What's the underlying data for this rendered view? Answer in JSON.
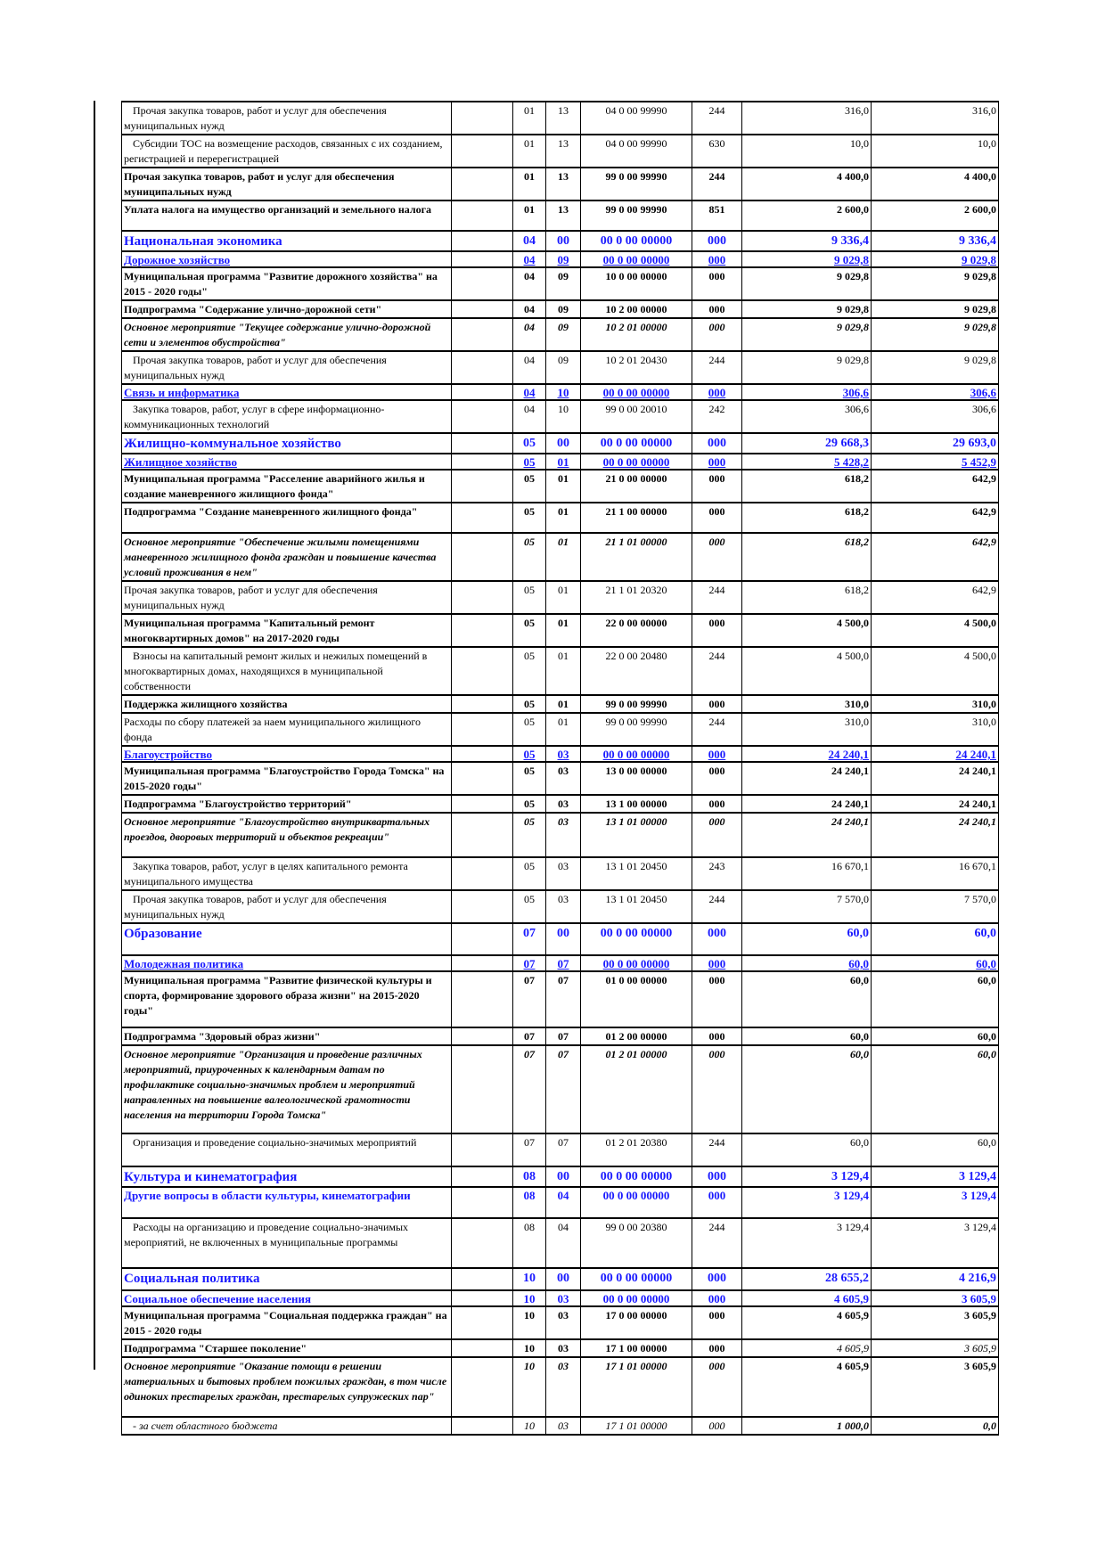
{
  "table": {
    "rows": [
      {
        "style": "plain",
        "indent": true,
        "name": "Прочая закупка товаров, работ и услуг для обеспечения муниципальных нужд",
        "rz": "01",
        "pr": "13",
        "csr": "04 0 00 99990",
        "vr": "244",
        "v1": "316,0",
        "v2": "316,0"
      },
      {
        "style": "plain",
        "indent": true,
        "name": "Субсидии ТОС на возмещение расходов, связанных с их созданием, регистрацией и перерегистрацией",
        "rz": "01",
        "pr": "13",
        "csr": "04 0 00 99990",
        "vr": "630",
        "v1": "10,0",
        "v2": "10,0"
      },
      {
        "style": "bold",
        "name": "Прочая закупка товаров, работ и услуг для обеспечения муниципальных нужд",
        "rz": "01",
        "pr": "13",
        "csr": "99 0 00 99990",
        "vr": "244",
        "v1": "4 400,0",
        "v2": "4 400,0"
      },
      {
        "style": "bold",
        "name": "Уплата налога на имущество организаций и земельного налога",
        "rz": "01",
        "pr": "13",
        "csr": "99 0 00 99990",
        "vr": "851",
        "v1": "2 600,0",
        "v2": "2 600,0"
      },
      {
        "style": "sect",
        "name": "Национальная экономика",
        "rz": "04",
        "pr": "00",
        "csr": "00 0 00 00000",
        "vr": "000",
        "v1": "9 336,4",
        "v2": "9 336,4"
      },
      {
        "style": "sub u",
        "name": "Дорожное хозяйство",
        "rz": "04",
        "pr": "09",
        "csr": "00 0 00 00000",
        "vr": "000",
        "v1": "9 029,8",
        "v2": "9 029,8"
      },
      {
        "style": "bold",
        "name": "Муниципальная программа \"Развитие дорожного хозяйства\" на 2015 - 2020 годы\"",
        "rz": "04",
        "pr": "09",
        "csr": "10 0 00 00000",
        "vr": "000",
        "v1": "9 029,8",
        "v2": "9 029,8"
      },
      {
        "style": "bold",
        "name": "Подпрограмма \"Содержание улично-дорожной сети\"",
        "rz": "04",
        "pr": "09",
        "csr": "10 2 00 00000",
        "vr": "000",
        "v1": "9 029,8",
        "v2": "9 029,8"
      },
      {
        "style": "italic",
        "name": "Основное мероприятие \"Текущее содержание улично-дорожной сети и элементов обустройства\"",
        "rz": "04",
        "pr": "09",
        "csr": "10 2 01 00000",
        "vr": "000",
        "v1": "9 029,8",
        "v2": "9 029,8"
      },
      {
        "style": "plain",
        "indent": true,
        "name": "Прочая закупка товаров, работ и услуг для обеспечения муниципальных нужд",
        "rz": "04",
        "pr": "09",
        "csr": "10 2 01 20430",
        "vr": "244",
        "v1": "9 029,8",
        "v2": "9 029,8"
      },
      {
        "style": "sub u",
        "name": "Связь и информатика",
        "rz": "04",
        "pr": "10",
        "csr": "00 0 00 00000",
        "vr": "000",
        "v1": "306,6",
        "v2": "306,6"
      },
      {
        "style": "plain",
        "indent": true,
        "name": "Закупка товаров, работ, услуг в сфере информационно-коммуникационных технологий",
        "rz": "04",
        "pr": "10",
        "csr": "99 0 00 20010",
        "vr": "242",
        "v1": "306,6",
        "v2": "306,6"
      },
      {
        "style": "sect",
        "name": "Жилищно-коммунальное хозяйство",
        "rz": "05",
        "pr": "00",
        "csr": "00 0 00 00000",
        "vr": "000",
        "v1": "29 668,3",
        "v2": "29 693,0"
      },
      {
        "style": "sub u",
        "name": "Жилищное хозяйство",
        "rz": "05",
        "pr": "01",
        "csr": "00 0 00 00000",
        "vr": "000",
        "v1": "5 428,2",
        "v2": "5 452,9"
      },
      {
        "style": "bold",
        "name": "Муниципальная программа \"Расселение аварийного жилья и создание маневренного жилищного фонда\"",
        "rz": "05",
        "pr": "01",
        "csr": "21 0 00 00000",
        "vr": "000",
        "v1": "618,2",
        "v2": "642,9"
      },
      {
        "style": "bold",
        "name": "Подпрограмма \"Создание маневренного жилищного фонда\"",
        "rz": "05",
        "pr": "01",
        "csr": "21 1 00 00000",
        "vr": "000",
        "v1": "618,2",
        "v2": "642,9"
      },
      {
        "style": "italic",
        "name": "Основное мероприятие \"Обеспечение жилыми помещениями маневренного жилищного фонда граждан и повышение качества условий проживания в нем\"",
        "rz": "05",
        "pr": "01",
        "csr": "21 1 01 00000",
        "vr": "000",
        "v1": "618,2",
        "v2": "642,9"
      },
      {
        "style": "plain",
        "name": "Прочая закупка товаров, работ и услуг для обеспечения муниципальных нужд",
        "rz": "05",
        "pr": "01",
        "csr": "21 1 01 20320",
        "vr": "244",
        "v1": "618,2",
        "v2": "642,9"
      },
      {
        "style": "bold",
        "name": "Муниципальная программа \"Капитальный ремонт многоквартирных домов\" на 2017-2020 годы",
        "rz": "05",
        "pr": "01",
        "csr": "22 0 00 00000",
        "vr": "000",
        "v1": "4 500,0",
        "v2": "4 500,0"
      },
      {
        "style": "plain",
        "indent": true,
        "name": "Взносы на капитальный ремонт жилых и нежилых помещений в многоквартирных домах, находящихся в муниципальной собственности",
        "rz": "05",
        "pr": "01",
        "csr": "22 0 00 20480",
        "vr": "244",
        "v1": "4 500,0",
        "v2": "4 500,0"
      },
      {
        "style": "bold",
        "name": "Поддержка жилищного хозяйства",
        "rz": "05",
        "pr": "01",
        "csr": "99 0 00 99990",
        "vr": "000",
        "v1": "310,0",
        "v2": "310,0"
      },
      {
        "style": "plain",
        "name": "Расходы по сбору платежей за наем муниципального жилищного фонда",
        "rz": "05",
        "pr": "01",
        "csr": "99 0 00 99990",
        "vr": "244",
        "v1": "310,0",
        "v2": "310,0"
      },
      {
        "style": "sub u",
        "name": "Благоустройство",
        "rz": "05",
        "pr": "03",
        "csr": "00 0 00 00000",
        "vr": "000",
        "v1": "24 240,1",
        "v2": "24 240,1"
      },
      {
        "style": "bold",
        "name": "Муниципальная программа \"Благоустройство Города Томска\" на 2015-2020 годы\"",
        "rz": "05",
        "pr": "03",
        "csr": "13 0 00 00000",
        "vr": "000",
        "v1": "24 240,1",
        "v2": "24 240,1"
      },
      {
        "style": "bold",
        "name": "Подпрограмма \"Благоустройство территорий\"",
        "rz": "05",
        "pr": "03",
        "csr": "13 1 00 00000",
        "vr": "000",
        "v1": "24 240,1",
        "v2": "24 240,1"
      },
      {
        "style": "italic",
        "name": "Основное мероприятие \"Благоустройство внутриквартальных проездов, дворовых территорий и объектов рекреации\"",
        "rz": "05",
        "pr": "03",
        "csr": "13 1 01 00000",
        "vr": "000",
        "v1": "24 240,1",
        "v2": "24 240,1"
      },
      {
        "style": "plain",
        "indent": true,
        "name": "Закупка товаров, работ, услуг в целях капитального ремонта муниципального имущества",
        "rz": "05",
        "pr": "03",
        "csr": "13 1 01 20450",
        "vr": "243",
        "v1": "16 670,1",
        "v2": "16 670,1"
      },
      {
        "style": "plain",
        "indent": true,
        "name": "Прочая закупка товаров, работ и услуг для обеспечения муниципальных нужд",
        "rz": "05",
        "pr": "03",
        "csr": "13 1 01 20450",
        "vr": "244",
        "v1": "7 570,0",
        "v2": "7 570,0"
      },
      {
        "style": "sect",
        "name": "Образование",
        "rz": "07",
        "pr": "00",
        "csr": "00 0 00 00000",
        "vr": "000",
        "v1": "60,0",
        "v2": "60,0"
      },
      {
        "style": "sub u",
        "name": "Молодежная политика",
        "rz": "07",
        "pr": "07",
        "csr": "00 0 00 00000",
        "vr": "000",
        "v1": "60,0",
        "v2": "60,0"
      },
      {
        "style": "bold",
        "name": "Муниципальная программа \"Развитие физической культуры и спорта, формирование здорового образа жизни\" на 2015-2020 годы\"",
        "rz": "07",
        "pr": "07",
        "csr": "01 0 00 00000",
        "vr": "000",
        "v1": "60,0",
        "v2": "60,0"
      },
      {
        "style": "bold",
        "name": "Подпрограмма \"Здоровый образ жизни\"",
        "rz": "07",
        "pr": "07",
        "csr": "01 2 00 00000",
        "vr": "000",
        "v1": "60,0",
        "v2": "60,0"
      },
      {
        "style": "italic",
        "name": "Основное мероприятие \"Организация и проведение различных мероприятий, приуроченных к календарным датам по профилактике социально-значимых проблем и мероприятий направленных на повышение валеологической грамотности населения на территории Города Томска\"",
        "rz": "07",
        "pr": "07",
        "csr": "01 2 01 00000",
        "vr": "000",
        "v1": "60,0",
        "v2": "60,0"
      },
      {
        "style": "plain",
        "indent": true,
        "name": "Организация и проведение социально-значимых мероприятий",
        "rz": "07",
        "pr": "07",
        "csr": "01 2 01 20380",
        "vr": "244",
        "v1": "60,0",
        "v2": "60,0"
      },
      {
        "style": "sect",
        "name": "Культура и кинематография",
        "rz": "08",
        "pr": "00",
        "csr": "00 0 00 00000",
        "vr": "000",
        "v1": "3 129,4",
        "v2": "3 129,4"
      },
      {
        "style": "sub",
        "name": "Другие вопросы в области культуры, кинематографии",
        "rz": "08",
        "pr": "04",
        "csr": "00 0 00 00000",
        "vr": "000",
        "v1": "3 129,4",
        "v2": "3 129,4"
      },
      {
        "style": "plain",
        "indent": true,
        "name": "Расходы на организацию и проведение социально-значимых мероприятий, не включенных в муниципальные программы",
        "rz": "08",
        "pr": "04",
        "csr": "99 0 00 20380",
        "vr": "244",
        "v1": "3 129,4",
        "v2": "3 129,4"
      },
      {
        "style": "sect",
        "name": "Социальная политика",
        "rz": "10",
        "pr": "00",
        "csr": "00 0 00 00000",
        "vr": "000",
        "v1": "28 655,2",
        "v2": "4 216,9"
      },
      {
        "style": "sub",
        "name": "Социальное обеспечение населения",
        "rz": "10",
        "pr": "03",
        "csr": "00 0 00 00000",
        "vr": "000",
        "v1": "4 605,9",
        "v2": "3 605,9"
      },
      {
        "style": "bold",
        "name": "Муниципальная программа \"Социальная поддержка граждан\" на 2015 - 2020 годы",
        "rz": "10",
        "pr": "03",
        "csr": "17 0 00 00000",
        "vr": "000",
        "v1": "4 605,9",
        "v2": "3 605,9"
      },
      {
        "style": "bold ital-val",
        "name": "Подпрограмма \"Старшее поколение\"",
        "rz": "10",
        "pr": "03",
        "csr": "17 1 00 00000",
        "vr": "000",
        "v1": "4 605,9",
        "v2": "3 605,9"
      },
      {
        "style": "boldval-ital",
        "name": "Основное мероприятие \"Оказание помощи в решении материальных и бытовых проблем пожилых граждан, в том числе одиноких престарелых граждан, престарелых супружеских пар\"",
        "rz": "10",
        "pr": "03",
        "csr": "17 1 01 00000",
        "vr": "000",
        "v1": "4 605,9",
        "v2": "3 605,9"
      },
      {
        "style": "note",
        "indent": true,
        "name": "- за счет областного бюджета",
        "rz": "10",
        "pr": "03",
        "csr": "17 1 01 00000",
        "vr": "000",
        "v1": "1 000,0",
        "v2": "0,0"
      }
    ]
  }
}
